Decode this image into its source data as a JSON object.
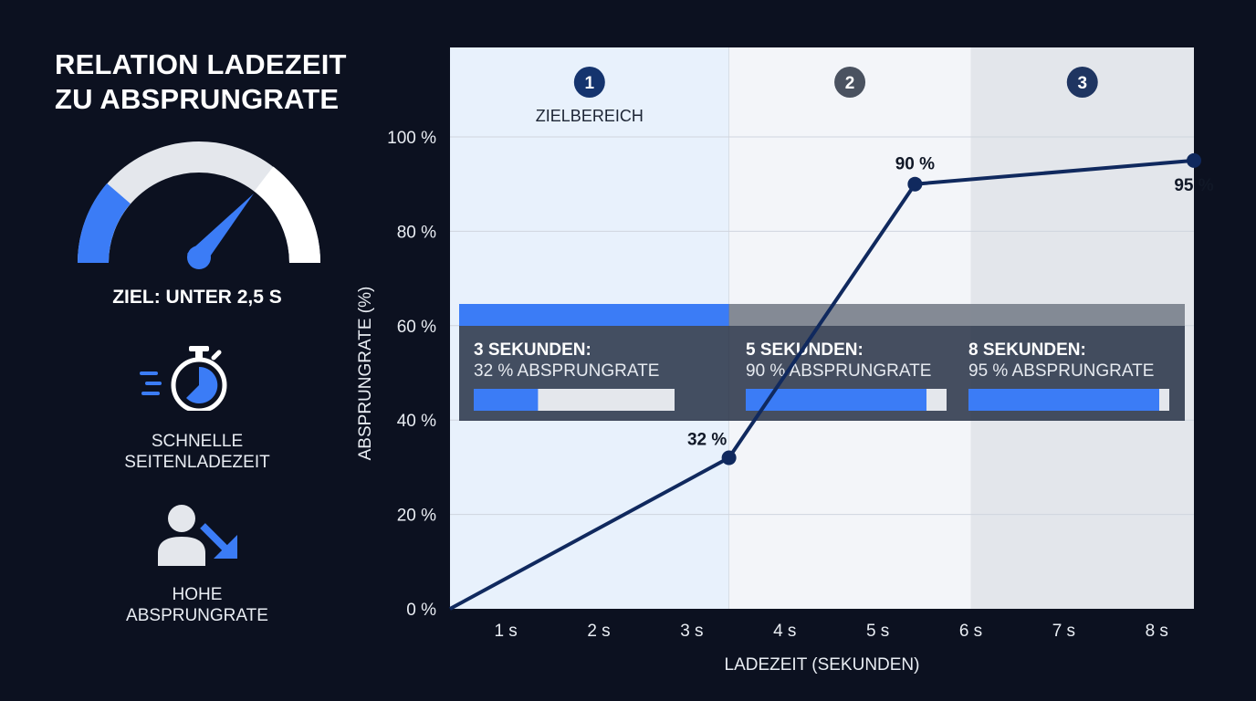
{
  "title": {
    "line1": "RELATION LADEZEIT",
    "line2": "ZU ABSPRUNGRATE"
  },
  "goal_label": "ZIEL: UNTER 2,5 S",
  "features": [
    {
      "label_line1": "SCHNELLE",
      "label_line2": "SEITENLADEZEIT",
      "icon": "stopwatch-icon"
    },
    {
      "label_line1": "HOHE",
      "label_line2": "ABSPRUNGRATE",
      "icon": "user-arrow-down-icon"
    }
  ],
  "colors": {
    "background": "#0c1120",
    "accent_blue": "#3b7cf6",
    "line": "#10295e",
    "zone1": "#e8f1fc",
    "zone2": "#f3f5f9",
    "zone3": "#e3e6eb",
    "zone_badge_1": "#15346e",
    "zone_badge_2": "#4a5260",
    "zone_badge_3": "#1f3561",
    "callout_panel": "#1f2a3e"
  },
  "chart_data": {
    "type": "line",
    "xlabel": "LADEZEIT (SEKUNDEN)",
    "ylabel": "ABSPRUNGRATE (%)",
    "x_ticks": [
      "1 s",
      "2 s",
      "3 s",
      "4 s",
      "5 s",
      "6 s",
      "7 s",
      "8 s"
    ],
    "y_ticks": [
      "0 %",
      "20 %",
      "40 %",
      "60 %",
      "80 %",
      "100 %"
    ],
    "xlim": [
      0,
      8
    ],
    "ylim": [
      0,
      100
    ],
    "grid": true,
    "series": [
      {
        "values": [
          {
            "x": 0,
            "y": 0
          },
          {
            "x": 3,
            "y": 32
          },
          {
            "x": 5,
            "y": 90
          },
          {
            "x": 8,
            "y": 95
          }
        ]
      }
    ],
    "point_labels": [
      {
        "x": 3,
        "y": 32,
        "text": "32 %"
      },
      {
        "x": 5,
        "y": 90,
        "text": "90 %"
      },
      {
        "x": 8,
        "y": 95,
        "text": "95 %"
      }
    ],
    "zones": [
      {
        "number": "1",
        "label": "ZIELBEREICH",
        "x_from": 0,
        "x_to": 3
      },
      {
        "number": "2",
        "label": "",
        "x_from": 3,
        "x_to": 5.6
      },
      {
        "number": "3",
        "label": "",
        "x_from": 5.6,
        "x_to": 8
      }
    ],
    "callouts": [
      {
        "title": "3 SEKUNDEN:",
        "subtitle": "32 % ABSPRUNGRATE",
        "value": 32
      },
      {
        "title": "5 SEKUNDEN:",
        "subtitle": "90 % ABSPRUNGRATE",
        "value": 90
      },
      {
        "title": "8 SEKUNDEN:",
        "subtitle": "95 % ABSPRUNGRATE",
        "value": 95
      }
    ]
  }
}
